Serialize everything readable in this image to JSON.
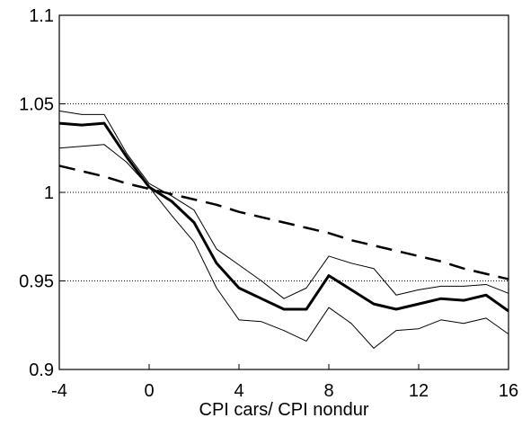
{
  "chart_data": {
    "type": "line",
    "xlabel": "CPI cars/ CPI nondur",
    "x": [
      -4,
      -3,
      -2,
      -1,
      0,
      1,
      2,
      3,
      4,
      5,
      6,
      7,
      8,
      9,
      10,
      11,
      12,
      13,
      14,
      15,
      16
    ],
    "xlim": [
      -4,
      16
    ],
    "xticks": [
      -4,
      0,
      4,
      8,
      12,
      16
    ],
    "ylim": [
      0.9,
      1.1
    ],
    "yticks": [
      0.9,
      0.95,
      1,
      1.05,
      1.1
    ],
    "grid": true,
    "series": [
      {
        "color": "#000000",
        "width": 3,
        "dash": "none",
        "values": [
          1.039,
          1.038,
          1.039,
          1.02,
          1.003,
          0.995,
          0.983,
          0.96,
          0.946,
          0.94,
          0.934,
          0.934,
          0.953,
          0.945,
          0.937,
          0.934,
          0.937,
          0.94,
          0.939,
          0.942,
          0.933
        ]
      },
      {
        "color": "#000000",
        "width": 1,
        "dash": "none",
        "values": [
          1.046,
          1.044,
          1.044,
          1.022,
          1.005,
          0.998,
          0.99,
          0.968,
          0.959,
          0.95,
          0.94,
          0.946,
          0.964,
          0.96,
          0.957,
          0.942,
          0.945,
          0.947,
          0.947,
          0.948,
          0.943
        ]
      },
      {
        "color": "#000000",
        "width": 1,
        "dash": "none",
        "values": [
          1.025,
          1.026,
          1.027,
          1.017,
          1.003,
          0.987,
          0.972,
          0.946,
          0.928,
          0.927,
          0.922,
          0.916,
          0.935,
          0.926,
          0.912,
          0.922,
          0.923,
          0.928,
          0.926,
          0.929,
          0.92
        ]
      },
      {
        "color": "#000000",
        "width": 2.5,
        "dash": "18 10",
        "values": [
          1.015,
          1.012,
          1.009,
          1.005,
          1.002,
          0.999,
          0.996,
          0.993,
          0.989,
          0.986,
          0.983,
          0.98,
          0.977,
          0.973,
          0.97,
          0.967,
          0.964,
          0.961,
          0.957,
          0.954,
          0.951
        ]
      }
    ]
  }
}
